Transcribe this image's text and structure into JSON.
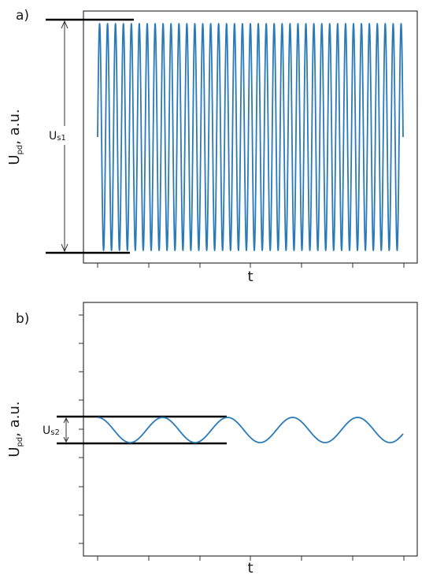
{
  "chart_data": [
    {
      "type": "line",
      "panel_label": "a)",
      "xlabel": "t",
      "ylabel": "U",
      "ylabel_sub": "pd",
      "ylabel_unit": ", a.u.",
      "annotation": {
        "main": "U",
        "sub": "s1"
      },
      "series": [
        {
          "color": "#2a7ab8",
          "shape": "sine",
          "cycles": 38.5,
          "amplitude": 1.0,
          "phase_start": 0.0,
          "label": ""
        }
      ],
      "ylim": [
        -1.05,
        1.25
      ],
      "grid": false
    },
    {
      "type": "line",
      "panel_label": "b)",
      "xlabel": "t",
      "ylabel": "U",
      "ylabel_sub": "pd",
      "ylabel_unit": ", a.u.",
      "annotation": {
        "main": "U",
        "sub": "s2"
      },
      "series": [
        {
          "color": "#2a7ab8",
          "shape": "sine",
          "cycles": 4.7,
          "amplitude": 0.11,
          "phase_start": 0.5,
          "label": ""
        }
      ],
      "ylim": [
        -1,
        1
      ],
      "grid": false
    }
  ]
}
